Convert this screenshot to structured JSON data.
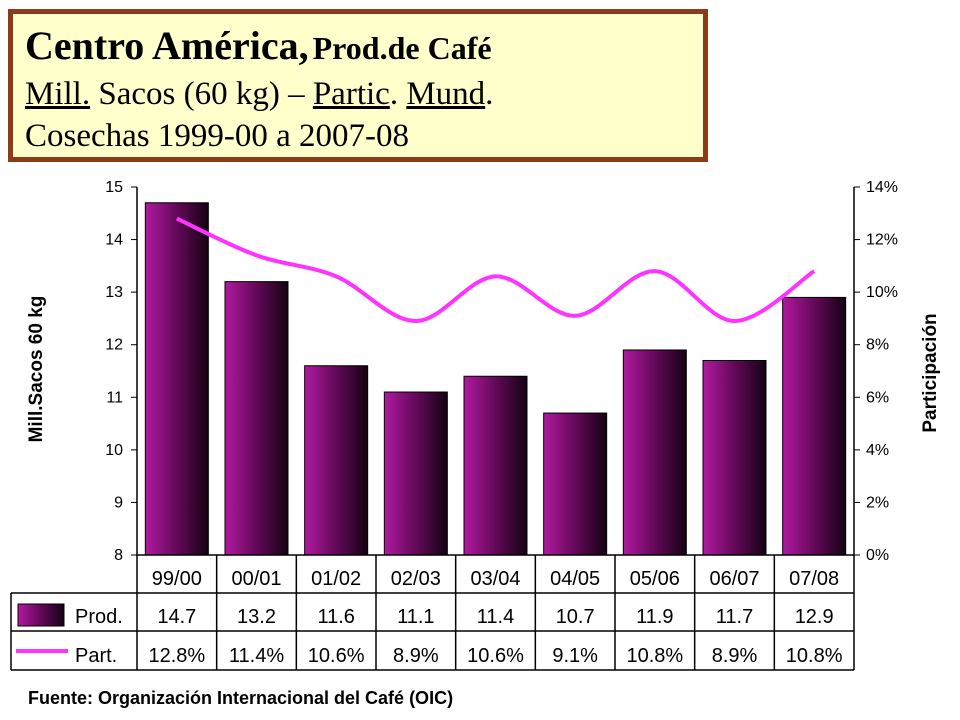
{
  "title": {
    "main": "Centro América,",
    "sub": "Prod.de Café",
    "line2_part1": "Mill.",
    "line2_part2": "Sacos (60 kg) –",
    "line2_part3": "Partic",
    "line2_part4": ".",
    "line2_part5": "Mund",
    "line2_part6": ".",
    "line3": "Cosechas 1999-00 a 2007-08"
  },
  "source": "Fuente: Organización Internacional del Café (OIC)",
  "chart_data": {
    "type": "bar",
    "categories": [
      "99/00",
      "00/01",
      "01/02",
      "02/03",
      "03/04",
      "04/05",
      "05/06",
      "06/07",
      "07/08"
    ],
    "series": [
      {
        "name": "Prod.",
        "type": "bar",
        "axis": "left",
        "values": [
          14.7,
          13.2,
          11.6,
          11.1,
          11.4,
          10.7,
          11.9,
          11.7,
          12.9
        ],
        "color": "#7a0a6e"
      },
      {
        "name": "Part.",
        "type": "line",
        "axis": "right",
        "values": [
          12.8,
          11.4,
          10.6,
          8.9,
          10.6,
          9.1,
          10.8,
          8.9,
          10.8
        ],
        "color": "#ff33ff"
      }
    ],
    "table": {
      "prod": [
        "14.7",
        "13.2",
        "11.6",
        "11.1",
        "11.4",
        "10.7",
        "11.9",
        "11.7",
        "12.9"
      ],
      "part": [
        "12.8%",
        "11.4%",
        "10.6%",
        "8.9%",
        "10.6%",
        "9.1%",
        "10.8%",
        "8.9%",
        "10.8%"
      ]
    },
    "ylabel": "Mill.Sacos 60 kg",
    "y2label": "Participación",
    "ylim": [
      8,
      15
    ],
    "y2lim": [
      0,
      14
    ],
    "yticks": [
      "8",
      "9",
      "10",
      "11",
      "12",
      "13",
      "14",
      "15"
    ],
    "y2ticks": [
      "0%",
      "2%",
      "4%",
      "6%",
      "8%",
      "10%",
      "12%",
      "14%"
    ],
    "grid": false,
    "legend": "data-table"
  }
}
